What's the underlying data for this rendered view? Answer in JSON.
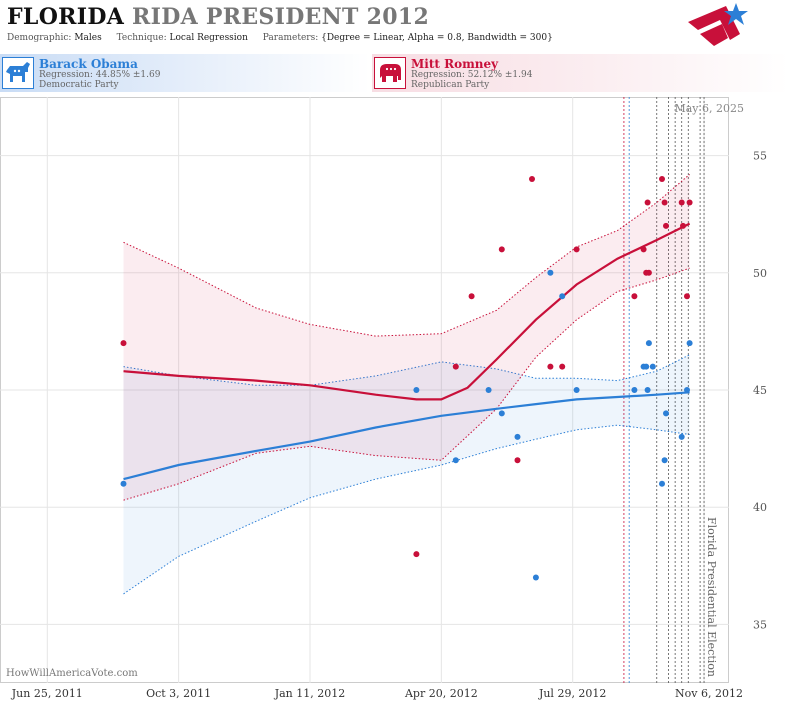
{
  "header": {
    "title_state": "FLORIDA",
    "title_rest": "RIDA PRESIDENT 2012",
    "demographic_label": "Demographic:",
    "demographic_value": "Males",
    "technique_label": "Technique:",
    "technique_value": "Local Regression",
    "parameters_label": "Parameters:",
    "parameters_value": "{Degree = Linear, Alpha = 0.8, Bandwidth = 300}"
  },
  "candidates": {
    "dem": {
      "name": "Barack Obama",
      "regression": "Regression: 44.85% ±1.69",
      "party": "Democratic Party",
      "color": "#2c7fd6",
      "icon": "donkey-icon"
    },
    "rep": {
      "name": "Mitt Romney",
      "regression": "Regression: 52.12% ±1.94",
      "party": "Republican Party",
      "color": "#c8103a",
      "icon": "elephant-icon"
    }
  },
  "date_label": "May 6, 2025",
  "credit": "HowWillAmericaVote.com",
  "chart_data": {
    "type": "scatter",
    "x_ticks": [
      {
        "label": "Jun 25, 2011",
        "date": "2011-06-25"
      },
      {
        "label": "Oct 3, 2011",
        "date": "2011-10-03"
      },
      {
        "label": "Jan 11, 2012",
        "date": "2012-01-11"
      },
      {
        "label": "Apr 20, 2012",
        "date": "2012-04-20"
      },
      {
        "label": "Jul 29, 2012",
        "date": "2012-07-29"
      },
      {
        "label": "Nov 6, 2012",
        "date": "2012-11-06"
      }
    ],
    "xlim": [
      "2011-05-20",
      "2012-11-25"
    ],
    "ylim": [
      32.5,
      57.5
    ],
    "y_ticks": [
      35,
      40,
      45,
      50,
      55
    ],
    "y_axis_side": "right",
    "grid": true,
    "event": {
      "date": "2012-11-06",
      "label": "Florida Presidential Election"
    },
    "poll_lines": [
      {
        "date": "2012-09-06",
        "party": "rep"
      },
      {
        "date": "2012-09-10",
        "party": "dem"
      },
      {
        "date": "2012-10-01",
        "party": "none"
      },
      {
        "date": "2012-10-10",
        "party": "none"
      },
      {
        "date": "2012-10-15",
        "party": "none"
      },
      {
        "date": "2012-10-20",
        "party": "none"
      },
      {
        "date": "2012-10-25",
        "party": "none"
      },
      {
        "date": "2012-11-03",
        "party": "none"
      }
    ],
    "series": [
      {
        "name": "Barack Obama",
        "party": "dem",
        "color": "#2c7fd6",
        "points": [
          [
            "2011-08-22",
            41
          ],
          [
            "2012-04-01",
            45
          ],
          [
            "2012-05-01",
            42
          ],
          [
            "2012-05-26",
            45
          ],
          [
            "2012-06-05",
            44
          ],
          [
            "2012-06-17",
            43
          ],
          [
            "2012-07-01",
            37
          ],
          [
            "2012-07-12",
            50
          ],
          [
            "2012-07-21",
            49
          ],
          [
            "2012-08-01",
            45
          ],
          [
            "2012-09-14",
            45
          ],
          [
            "2012-09-21",
            46
          ],
          [
            "2012-09-23",
            46
          ],
          [
            "2012-09-24",
            45
          ],
          [
            "2012-09-25",
            47
          ],
          [
            "2012-09-28",
            46
          ],
          [
            "2012-10-05",
            41
          ],
          [
            "2012-10-07",
            42
          ],
          [
            "2012-10-08",
            44
          ],
          [
            "2012-10-20",
            43
          ],
          [
            "2012-10-24",
            45
          ],
          [
            "2012-10-26",
            47
          ]
        ],
        "trend": [
          [
            "2011-08-22",
            41.2
          ],
          [
            "2011-10-03",
            41.8
          ],
          [
            "2011-12-01",
            42.4
          ],
          [
            "2012-01-11",
            42.8
          ],
          [
            "2012-03-01",
            43.4
          ],
          [
            "2012-04-20",
            43.9
          ],
          [
            "2012-06-01",
            44.2
          ],
          [
            "2012-07-01",
            44.4
          ],
          [
            "2012-08-01",
            44.6
          ],
          [
            "2012-09-01",
            44.7
          ],
          [
            "2012-10-01",
            44.8
          ],
          [
            "2012-10-26",
            44.9
          ]
        ],
        "band_upper": [
          [
            "2011-08-22",
            46.0
          ],
          [
            "2011-10-03",
            45.6
          ],
          [
            "2011-12-01",
            45.2
          ],
          [
            "2012-01-11",
            45.2
          ],
          [
            "2012-03-01",
            45.6
          ],
          [
            "2012-04-20",
            46.2
          ],
          [
            "2012-06-01",
            45.9
          ],
          [
            "2012-07-01",
            45.5
          ],
          [
            "2012-08-01",
            45.5
          ],
          [
            "2012-09-01",
            45.4
          ],
          [
            "2012-10-01",
            45.8
          ],
          [
            "2012-10-26",
            46.5
          ]
        ],
        "band_lower": [
          [
            "2011-08-22",
            36.3
          ],
          [
            "2011-10-03",
            37.9
          ],
          [
            "2011-12-01",
            39.4
          ],
          [
            "2012-01-11",
            40.4
          ],
          [
            "2012-03-01",
            41.2
          ],
          [
            "2012-04-20",
            41.8
          ],
          [
            "2012-06-01",
            42.5
          ],
          [
            "2012-07-01",
            42.9
          ],
          [
            "2012-08-01",
            43.3
          ],
          [
            "2012-09-01",
            43.5
          ],
          [
            "2012-10-01",
            43.3
          ],
          [
            "2012-10-26",
            43.1
          ]
        ]
      },
      {
        "name": "Mitt Romney",
        "party": "rep",
        "color": "#c8103a",
        "points": [
          [
            "2011-08-22",
            47
          ],
          [
            "2012-04-01",
            38
          ],
          [
            "2012-05-01",
            46
          ],
          [
            "2012-05-13",
            49
          ],
          [
            "2012-06-05",
            51
          ],
          [
            "2012-06-17",
            42
          ],
          [
            "2012-06-28",
            54
          ],
          [
            "2012-07-12",
            46
          ],
          [
            "2012-07-21",
            46
          ],
          [
            "2012-08-01",
            51
          ],
          [
            "2012-09-14",
            49
          ],
          [
            "2012-09-21",
            51
          ],
          [
            "2012-09-23",
            50
          ],
          [
            "2012-09-24",
            53
          ],
          [
            "2012-09-25",
            50
          ],
          [
            "2012-10-05",
            54
          ],
          [
            "2012-10-07",
            53
          ],
          [
            "2012-10-08",
            52
          ],
          [
            "2012-10-20",
            53
          ],
          [
            "2012-10-21",
            52
          ],
          [
            "2012-10-24",
            49
          ],
          [
            "2012-10-26",
            53
          ]
        ],
        "trend": [
          [
            "2011-08-22",
            45.8
          ],
          [
            "2011-10-03",
            45.6
          ],
          [
            "2011-12-01",
            45.4
          ],
          [
            "2012-01-11",
            45.2
          ],
          [
            "2012-03-01",
            44.8
          ],
          [
            "2012-04-01",
            44.6
          ],
          [
            "2012-04-20",
            44.6
          ],
          [
            "2012-05-10",
            45.1
          ],
          [
            "2012-06-01",
            46.3
          ],
          [
            "2012-07-01",
            48.0
          ],
          [
            "2012-08-01",
            49.5
          ],
          [
            "2012-09-01",
            50.6
          ],
          [
            "2012-10-01",
            51.4
          ],
          [
            "2012-10-26",
            52.1
          ]
        ],
        "band_upper": [
          [
            "2011-08-22",
            51.3
          ],
          [
            "2011-10-03",
            50.2
          ],
          [
            "2011-12-01",
            48.5
          ],
          [
            "2012-01-11",
            47.8
          ],
          [
            "2012-03-01",
            47.3
          ],
          [
            "2012-04-20",
            47.4
          ],
          [
            "2012-06-01",
            48.4
          ],
          [
            "2012-07-01",
            49.8
          ],
          [
            "2012-08-01",
            51.1
          ],
          [
            "2012-09-01",
            51.8
          ],
          [
            "2012-10-01",
            53.0
          ],
          [
            "2012-10-26",
            54.2
          ]
        ],
        "band_lower": [
          [
            "2011-08-22",
            40.3
          ],
          [
            "2011-10-03",
            41.0
          ],
          [
            "2011-12-01",
            42.3
          ],
          [
            "2012-01-11",
            42.6
          ],
          [
            "2012-03-01",
            42.2
          ],
          [
            "2012-04-20",
            42.0
          ],
          [
            "2012-06-01",
            44.2
          ],
          [
            "2012-07-01",
            46.4
          ],
          [
            "2012-08-01",
            48.0
          ],
          [
            "2012-09-01",
            49.2
          ],
          [
            "2012-10-01",
            49.7
          ],
          [
            "2012-10-26",
            50.2
          ]
        ]
      }
    ]
  }
}
